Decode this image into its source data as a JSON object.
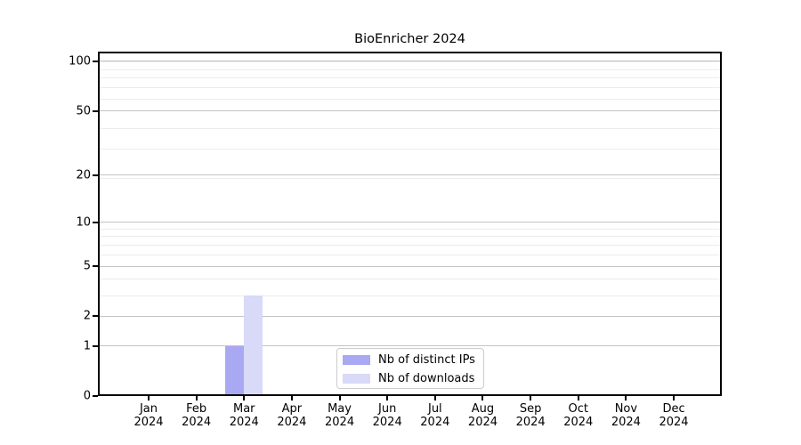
{
  "chart_data": {
    "type": "bar",
    "title": "BioEnricher 2024",
    "categories": [
      "Jan",
      "Feb",
      "Mar",
      "Apr",
      "May",
      "Jun",
      "Jul",
      "Aug",
      "Sep",
      "Oct",
      "Nov",
      "Dec"
    ],
    "category_year": "2024",
    "series": [
      {
        "name": "Nb of distinct IPs",
        "color": "#a9a9f3",
        "values": [
          0,
          0,
          1,
          0,
          0,
          0,
          0,
          0,
          0,
          0,
          0,
          0
        ]
      },
      {
        "name": "Nb of downloads",
        "color": "#d9d9f8",
        "values": [
          0,
          0,
          3,
          0,
          0,
          0,
          0,
          0,
          0,
          0,
          0,
          0
        ]
      }
    ],
    "xlabel": "",
    "ylabel": "",
    "y_scale": "log10(1+value)",
    "y_ticks": [
      0,
      1,
      2,
      5,
      10,
      20,
      50,
      100
    ],
    "y_minor_gridlines_1p": [
      4,
      5,
      7,
      8,
      9,
      10,
      20,
      30,
      40,
      60,
      70,
      80,
      90,
      100
    ],
    "ylim": [
      0,
      115
    ],
    "grid": "horizontal, major and minor",
    "legend_position": "lower center inside plot"
  },
  "colors": {
    "major_grid": "#c3c3c3",
    "minor_grid": "#ececec",
    "spine": "#000000",
    "background": "#ffffff",
    "legend_border": "#cccccc"
  }
}
